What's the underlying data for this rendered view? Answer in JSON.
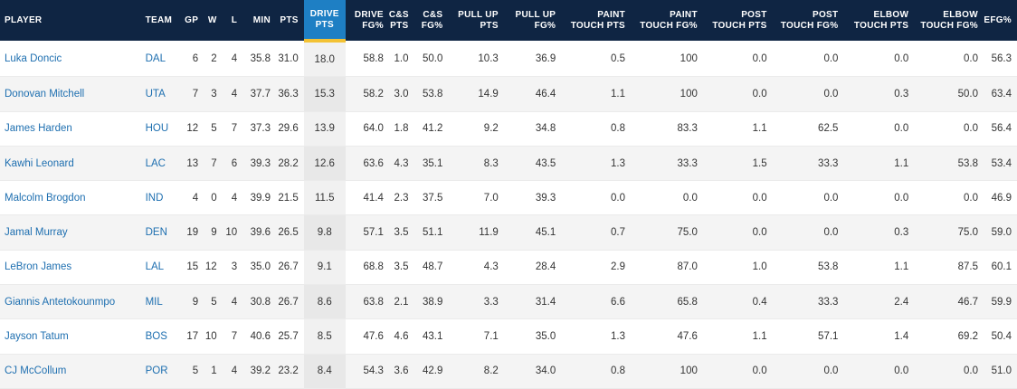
{
  "columns": [
    {
      "key": "player",
      "l1": "",
      "l2": "PLAYER"
    },
    {
      "key": "team",
      "l1": "",
      "l2": "TEAM"
    },
    {
      "key": "gp",
      "l1": "",
      "l2": "GP"
    },
    {
      "key": "w",
      "l1": "",
      "l2": "W"
    },
    {
      "key": "l",
      "l1": "",
      "l2": "L"
    },
    {
      "key": "min",
      "l1": "",
      "l2": "MIN"
    },
    {
      "key": "pts",
      "l1": "",
      "l2": "PTS"
    },
    {
      "key": "drive_pts",
      "l1": "DRIVE",
      "l2": "PTS"
    },
    {
      "key": "drive_fg",
      "l1": "DRIVE",
      "l2": "FG%"
    },
    {
      "key": "cs_pts",
      "l1": "C&S",
      "l2": "PTS"
    },
    {
      "key": "cs_fg",
      "l1": "C&S",
      "l2": "FG%"
    },
    {
      "key": "pullup_pts",
      "l1": "PULL UP",
      "l2": "PTS"
    },
    {
      "key": "pullup_fg",
      "l1": "PULL UP",
      "l2": "FG%"
    },
    {
      "key": "paint_pts",
      "l1": "PAINT",
      "l2": "TOUCH PTS"
    },
    {
      "key": "paint_fg",
      "l1": "PAINT",
      "l2": "TOUCH FG%"
    },
    {
      "key": "post_pts",
      "l1": "POST",
      "l2": "TOUCH PTS"
    },
    {
      "key": "post_fg",
      "l1": "POST",
      "l2": "TOUCH FG%"
    },
    {
      "key": "elbow_pts",
      "l1": "ELBOW",
      "l2": "TOUCH PTS"
    },
    {
      "key": "elbow_fg",
      "l1": "ELBOW",
      "l2": "TOUCH FG%"
    },
    {
      "key": "efg",
      "l1": "",
      "l2": "EFG%"
    }
  ],
  "sorted_column": "drive_pts",
  "rows": [
    [
      "Luka Doncic",
      "DAL",
      "6",
      "2",
      "4",
      "35.8",
      "31.0",
      "18.0",
      "58.8",
      "1.0",
      "50.0",
      "10.3",
      "36.9",
      "0.5",
      "100",
      "0.0",
      "0.0",
      "0.0",
      "0.0",
      "56.3"
    ],
    [
      "Donovan Mitchell",
      "UTA",
      "7",
      "3",
      "4",
      "37.7",
      "36.3",
      "15.3",
      "58.2",
      "3.0",
      "53.8",
      "14.9",
      "46.4",
      "1.1",
      "100",
      "0.0",
      "0.0",
      "0.3",
      "50.0",
      "63.4"
    ],
    [
      "James Harden",
      "HOU",
      "12",
      "5",
      "7",
      "37.3",
      "29.6",
      "13.9",
      "64.0",
      "1.8",
      "41.2",
      "9.2",
      "34.8",
      "0.8",
      "83.3",
      "1.1",
      "62.5",
      "0.0",
      "0.0",
      "56.4"
    ],
    [
      "Kawhi Leonard",
      "LAC",
      "13",
      "7",
      "6",
      "39.3",
      "28.2",
      "12.6",
      "63.6",
      "4.3",
      "35.1",
      "8.3",
      "43.5",
      "1.3",
      "33.3",
      "1.5",
      "33.3",
      "1.1",
      "53.8",
      "53.4"
    ],
    [
      "Malcolm Brogdon",
      "IND",
      "4",
      "0",
      "4",
      "39.9",
      "21.5",
      "11.5",
      "41.4",
      "2.3",
      "37.5",
      "7.0",
      "39.3",
      "0.0",
      "0.0",
      "0.0",
      "0.0",
      "0.0",
      "0.0",
      "46.9"
    ],
    [
      "Jamal Murray",
      "DEN",
      "19",
      "9",
      "10",
      "39.6",
      "26.5",
      "9.8",
      "57.1",
      "3.5",
      "51.1",
      "11.9",
      "45.1",
      "0.7",
      "75.0",
      "0.0",
      "0.0",
      "0.3",
      "75.0",
      "59.0"
    ],
    [
      "LeBron James",
      "LAL",
      "15",
      "12",
      "3",
      "35.0",
      "26.7",
      "9.1",
      "68.8",
      "3.5",
      "48.7",
      "4.3",
      "28.4",
      "2.9",
      "87.0",
      "1.0",
      "53.8",
      "1.1",
      "87.5",
      "60.1"
    ],
    [
      "Giannis Antetokounmpo",
      "MIL",
      "9",
      "5",
      "4",
      "30.8",
      "26.7",
      "8.6",
      "63.8",
      "2.1",
      "38.9",
      "3.3",
      "31.4",
      "6.6",
      "65.8",
      "0.4",
      "33.3",
      "2.4",
      "46.7",
      "59.9"
    ],
    [
      "Jayson Tatum",
      "BOS",
      "17",
      "10",
      "7",
      "40.6",
      "25.7",
      "8.5",
      "47.6",
      "4.6",
      "43.1",
      "7.1",
      "35.0",
      "1.3",
      "47.6",
      "1.1",
      "57.1",
      "1.4",
      "69.2",
      "50.4"
    ],
    [
      "CJ McCollum",
      "POR",
      "5",
      "1",
      "4",
      "39.2",
      "23.2",
      "8.4",
      "54.3",
      "3.6",
      "42.9",
      "8.2",
      "34.0",
      "0.8",
      "100",
      "0.0",
      "0.0",
      "0.0",
      "0.0",
      "51.0"
    ]
  ]
}
